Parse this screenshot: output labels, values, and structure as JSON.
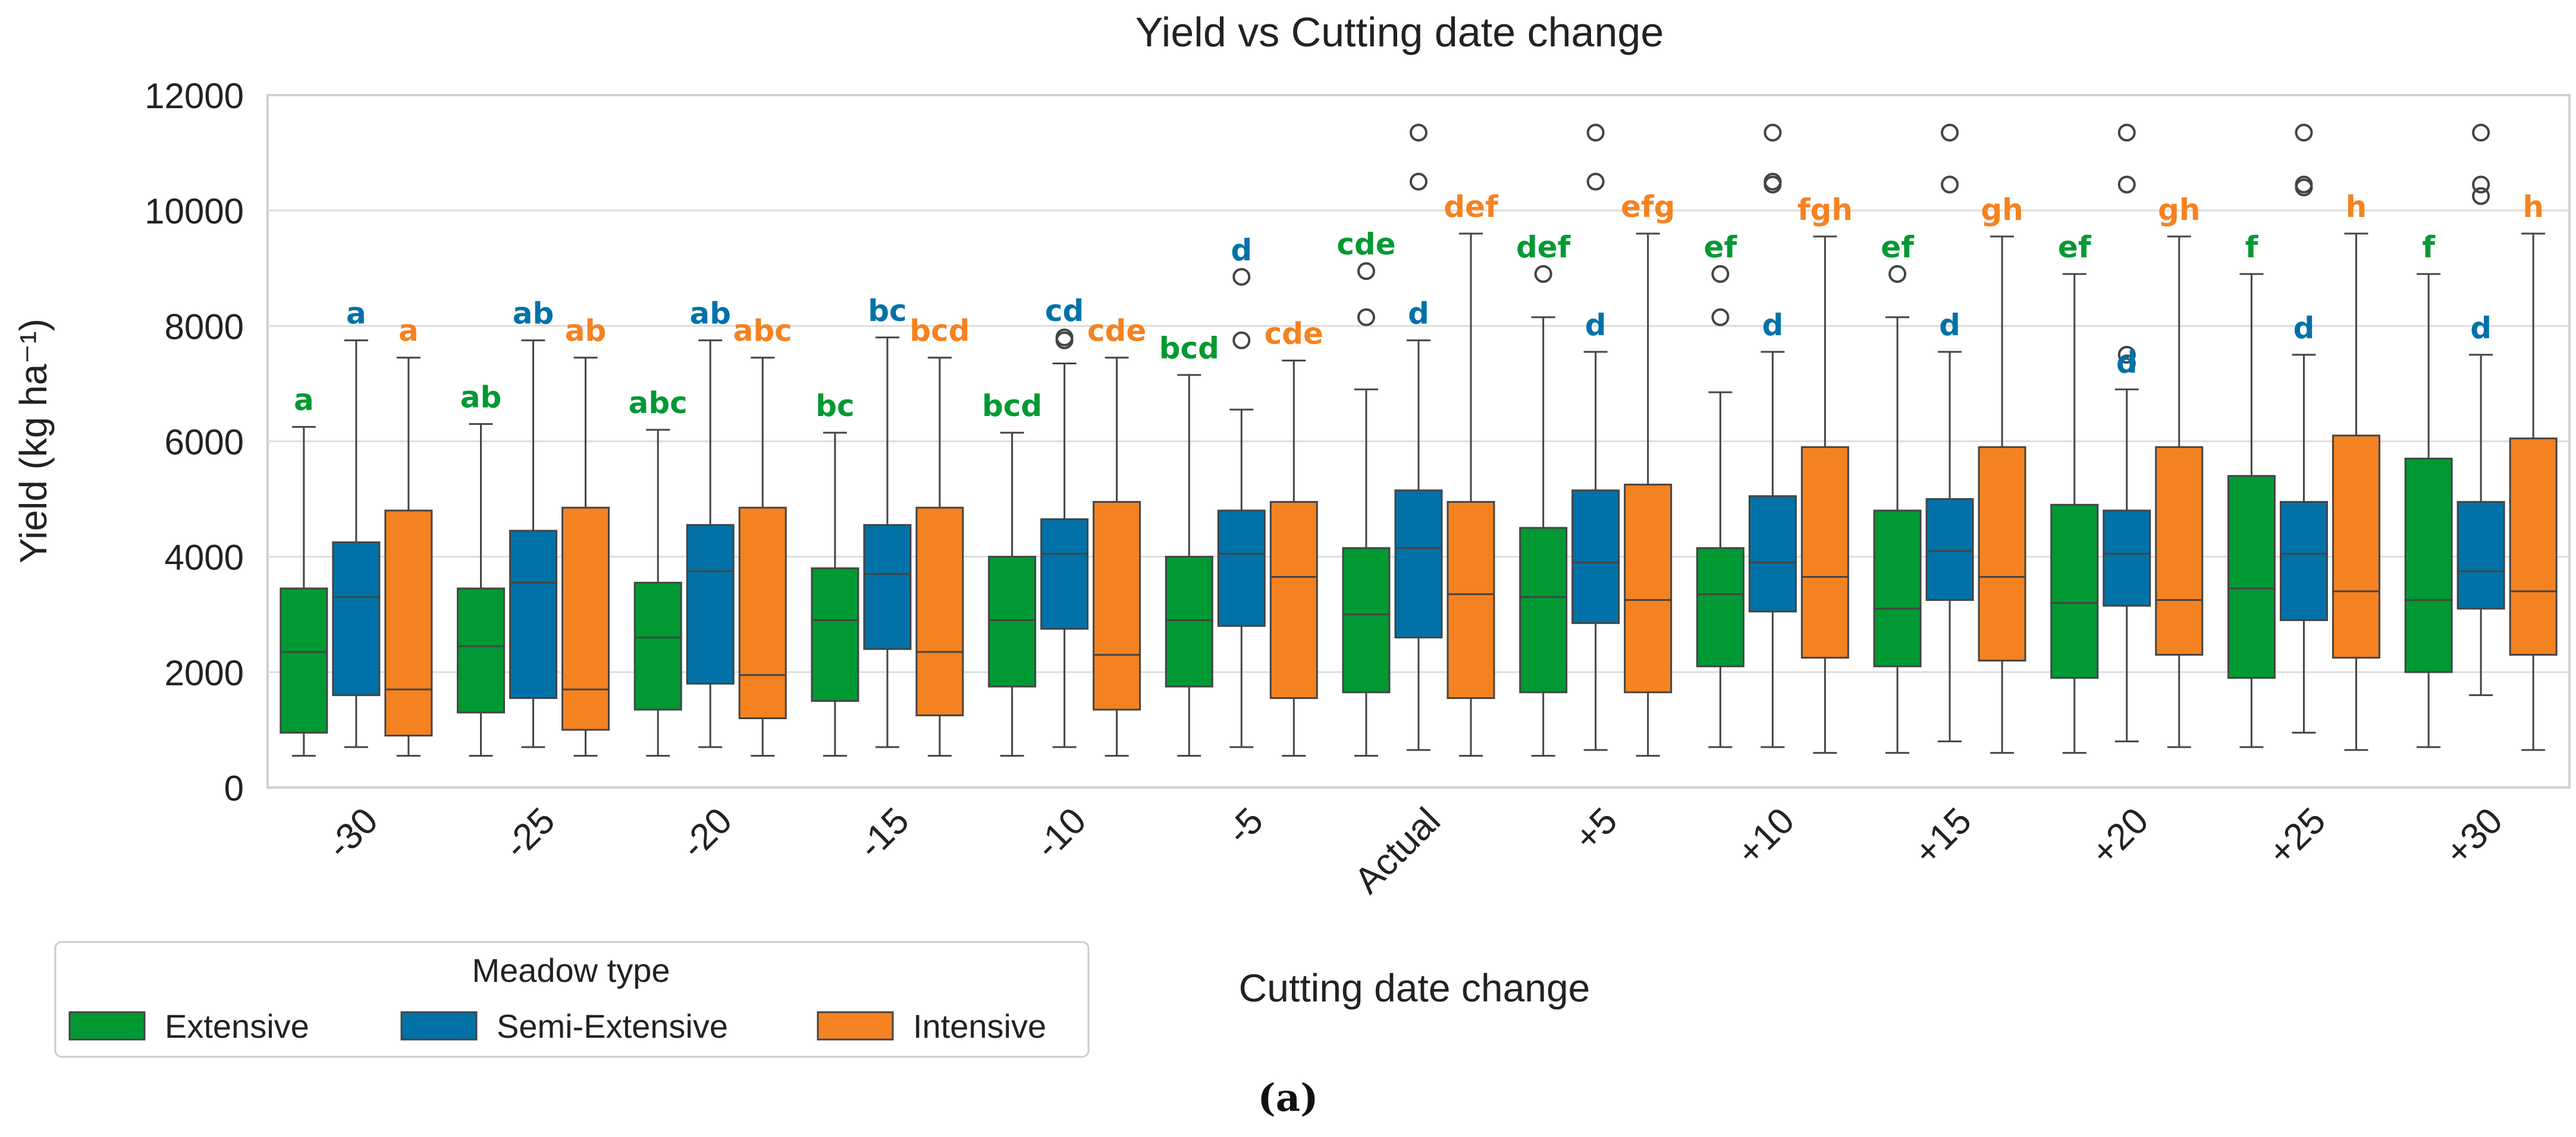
{
  "chart_data": {
    "type": "box",
    "title": "Yield vs Cutting date change",
    "xlabel": "Cutting date change",
    "ylabel": "Yield (kg ha⁻¹)",
    "ylim": [
      0,
      12000
    ],
    "yticks": [
      0,
      2000,
      4000,
      6000,
      8000,
      10000,
      12000
    ],
    "grid": true,
    "categories": [
      "-30",
      "-25",
      "-20",
      "-15",
      "-10",
      "-5",
      "Actual",
      "+5",
      "+10",
      "+15",
      "+20",
      "+25",
      "+30"
    ],
    "legend": {
      "title": "Meadow type",
      "position": "bottom-left"
    },
    "caption": "(a)",
    "series": [
      {
        "name": "Extensive",
        "color": "#009933",
        "boxes": [
          {
            "min": 550,
            "q1": 950,
            "median": 2350,
            "q3": 3450,
            "max": 6250,
            "outliers": [],
            "label": "a"
          },
          {
            "min": 550,
            "q1": 1300,
            "median": 2450,
            "q3": 3450,
            "max": 6300,
            "outliers": [],
            "label": "ab"
          },
          {
            "min": 550,
            "q1": 1350,
            "median": 2600,
            "q3": 3550,
            "max": 6200,
            "outliers": [],
            "label": "abc"
          },
          {
            "min": 550,
            "q1": 1500,
            "median": 2900,
            "q3": 3800,
            "max": 6150,
            "outliers": [],
            "label": "bc"
          },
          {
            "min": 550,
            "q1": 1750,
            "median": 2900,
            "q3": 4000,
            "max": 6150,
            "outliers": [],
            "label": "bcd"
          },
          {
            "min": 550,
            "q1": 1750,
            "median": 2900,
            "q3": 4000,
            "max": 7150,
            "outliers": [],
            "label": "bcd"
          },
          {
            "min": 550,
            "q1": 1650,
            "median": 3000,
            "q3": 4150,
            "max": 6900,
            "outliers": [
              8150,
              8950
            ],
            "label": "cde"
          },
          {
            "min": 550,
            "q1": 1650,
            "median": 3300,
            "q3": 4500,
            "max": 8150,
            "outliers": [
              8900
            ],
            "label": "def"
          },
          {
            "min": 700,
            "q1": 2100,
            "median": 3350,
            "q3": 4150,
            "max": 6850,
            "outliers": [
              8150,
              8900
            ],
            "label": "ef"
          },
          {
            "min": 600,
            "q1": 2100,
            "median": 3100,
            "q3": 4800,
            "max": 8150,
            "outliers": [
              8900
            ],
            "label": "ef"
          },
          {
            "min": 600,
            "q1": 1900,
            "median": 3200,
            "q3": 4900,
            "max": 8900,
            "outliers": [],
            "label": "ef"
          },
          {
            "min": 700,
            "q1": 1900,
            "median": 3450,
            "q3": 5400,
            "max": 8900,
            "outliers": [],
            "label": "f"
          },
          {
            "min": 700,
            "q1": 2000,
            "median": 3250,
            "q3": 5700,
            "max": 8900,
            "outliers": [],
            "label": "f"
          }
        ]
      },
      {
        "name": "Semi-Extensive",
        "color": "#0072A8",
        "boxes": [
          {
            "min": 700,
            "q1": 1600,
            "median": 3300,
            "q3": 4250,
            "max": 7750,
            "outliers": [],
            "label": "a"
          },
          {
            "min": 700,
            "q1": 1550,
            "median": 3550,
            "q3": 4450,
            "max": 7750,
            "outliers": [],
            "label": "ab"
          },
          {
            "min": 700,
            "q1": 1800,
            "median": 3750,
            "q3": 4550,
            "max": 7750,
            "outliers": [],
            "label": "ab"
          },
          {
            "min": 700,
            "q1": 2400,
            "median": 3700,
            "q3": 4550,
            "max": 7800,
            "outliers": [],
            "label": "bc"
          },
          {
            "min": 700,
            "q1": 2750,
            "median": 4050,
            "q3": 4650,
            "max": 7350,
            "outliers": [
              7750,
              7800
            ],
            "label": "cd"
          },
          {
            "min": 700,
            "q1": 2800,
            "median": 4050,
            "q3": 4800,
            "max": 6550,
            "outliers": [
              7750,
              8850
            ],
            "label": "d"
          },
          {
            "min": 650,
            "q1": 2600,
            "median": 4150,
            "q3": 5150,
            "max": 7750,
            "outliers": [
              10500,
              11350
            ],
            "label": "d"
          },
          {
            "min": 650,
            "q1": 2850,
            "median": 3900,
            "q3": 5150,
            "max": 7550,
            "outliers": [
              10500,
              11350
            ],
            "label": "d"
          },
          {
            "min": 700,
            "q1": 3050,
            "median": 3900,
            "q3": 5050,
            "max": 7550,
            "outliers": [
              10450,
              10500,
              11350
            ],
            "label": "d"
          },
          {
            "min": 800,
            "q1": 3250,
            "median": 4100,
            "q3": 5000,
            "max": 7550,
            "outliers": [
              10450,
              11350
            ],
            "label": "d"
          },
          {
            "min": 800,
            "q1": 3150,
            "median": 4050,
            "q3": 4800,
            "max": 6900,
            "outliers": [
              7350,
              7500,
              10450,
              11350
            ],
            "label": "d"
          },
          {
            "min": 950,
            "q1": 2900,
            "median": 4050,
            "q3": 4950,
            "max": 7500,
            "outliers": [
              10400,
              10450,
              11350
            ],
            "label": "d"
          },
          {
            "min": 1600,
            "q1": 3100,
            "median": 3750,
            "q3": 4950,
            "max": 7500,
            "outliers": [
              10250,
              10450,
              11350
            ],
            "label": "d"
          }
        ]
      },
      {
        "name": "Intensive",
        "color": "#F58220",
        "boxes": [
          {
            "min": 550,
            "q1": 900,
            "median": 1700,
            "q3": 4800,
            "max": 7450,
            "outliers": [],
            "label": "a"
          },
          {
            "min": 550,
            "q1": 1000,
            "median": 1700,
            "q3": 4850,
            "max": 7450,
            "outliers": [],
            "label": "ab"
          },
          {
            "min": 550,
            "q1": 1200,
            "median": 1950,
            "q3": 4850,
            "max": 7450,
            "outliers": [],
            "label": "abc"
          },
          {
            "min": 550,
            "q1": 1250,
            "median": 2350,
            "q3": 4850,
            "max": 7450,
            "outliers": [],
            "label": "bcd"
          },
          {
            "min": 550,
            "q1": 1350,
            "median": 2300,
            "q3": 4950,
            "max": 7450,
            "outliers": [],
            "label": "cde"
          },
          {
            "min": 550,
            "q1": 1550,
            "median": 3650,
            "q3": 4950,
            "max": 7400,
            "outliers": [],
            "label": "cde"
          },
          {
            "min": 550,
            "q1": 1550,
            "median": 3350,
            "q3": 4950,
            "max": 9600,
            "outliers": [],
            "label": "def"
          },
          {
            "min": 550,
            "q1": 1650,
            "median": 3250,
            "q3": 5250,
            "max": 9600,
            "outliers": [],
            "label": "efg"
          },
          {
            "min": 600,
            "q1": 2250,
            "median": 3650,
            "q3": 5900,
            "max": 9550,
            "outliers": [],
            "label": "fgh"
          },
          {
            "min": 600,
            "q1": 2200,
            "median": 3650,
            "q3": 5900,
            "max": 9550,
            "outliers": [],
            "label": "gh"
          },
          {
            "min": 700,
            "q1": 2300,
            "median": 3250,
            "q3": 5900,
            "max": 9550,
            "outliers": [],
            "label": "gh"
          },
          {
            "min": 650,
            "q1": 2250,
            "median": 3400,
            "q3": 6100,
            "max": 9600,
            "outliers": [],
            "label": "h"
          },
          {
            "min": 650,
            "q1": 2300,
            "median": 3400,
            "q3": 6050,
            "max": 9600,
            "outliers": [],
            "label": "h"
          }
        ]
      }
    ]
  }
}
